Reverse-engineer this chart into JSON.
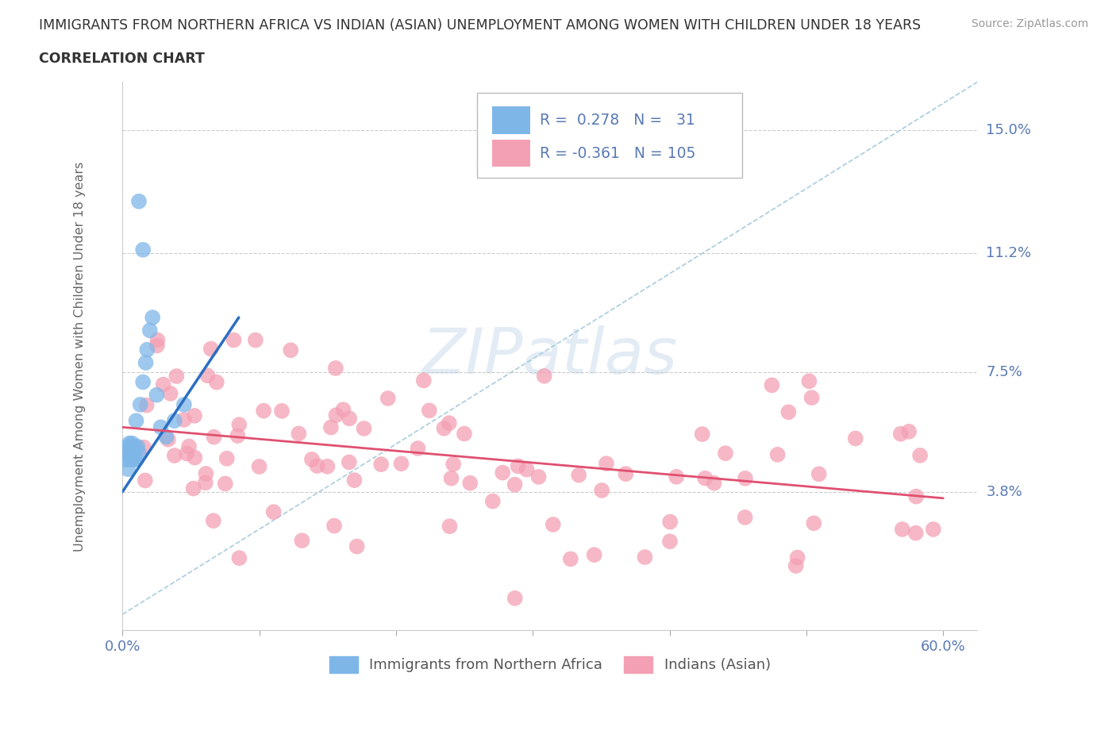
{
  "title_line1": "IMMIGRANTS FROM NORTHERN AFRICA VS INDIAN (ASIAN) UNEMPLOYMENT AMONG WOMEN WITH CHILDREN UNDER 18 YEARS",
  "title_line2": "CORRELATION CHART",
  "source": "Source: ZipAtlas.com",
  "ylabel": "Unemployment Among Women with Children Under 18 years",
  "xlim": [
    0.0,
    0.625
  ],
  "ylim": [
    -0.005,
    0.165
  ],
  "yticks": [
    0.038,
    0.075,
    0.112,
    0.15
  ],
  "ytick_labels": [
    "3.8%",
    "7.5%",
    "11.2%",
    "15.0%"
  ],
  "xticks": [
    0.0,
    0.1,
    0.2,
    0.3,
    0.4,
    0.5,
    0.6
  ],
  "xtick_labels": [
    "0.0%",
    "",
    "",
    "",
    "",
    "",
    "60.0%"
  ],
  "legend_labels": [
    "Immigrants from Northern Africa",
    "Indians (Asian)"
  ],
  "R_blue": 0.278,
  "N_blue": 31,
  "R_pink": -0.361,
  "N_pink": 105,
  "color_blue": "#7EB6E8",
  "color_pink": "#F4A0B4",
  "line_blue": "#2B6FC2",
  "line_pink": "#E05070",
  "axis_color": "#5A7AB5",
  "grid_color": "#CCCCCC",
  "ref_line_color": "#AACCDD",
  "blue_line_x": [
    0.0,
    0.085
  ],
  "blue_line_y": [
    0.038,
    0.092
  ],
  "pink_line_x": [
    0.0,
    0.6
  ],
  "pink_line_y": [
    0.058,
    0.036
  ]
}
